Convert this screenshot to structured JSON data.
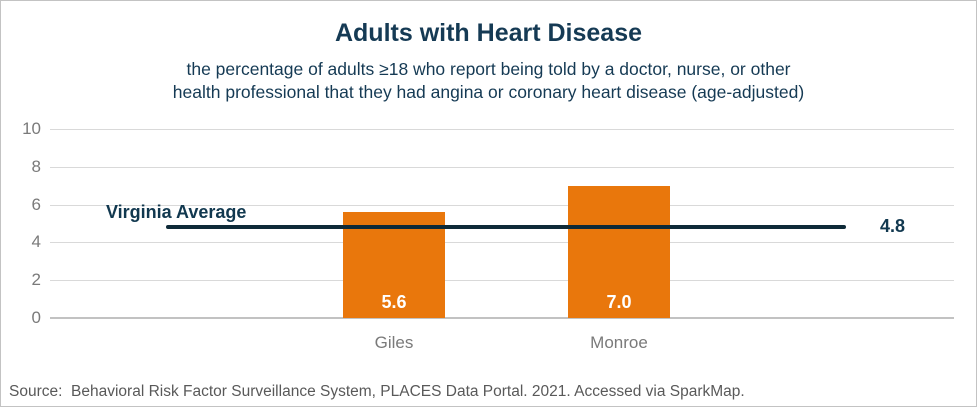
{
  "header": {
    "title": "Adults with Heart Disease",
    "subtitle_line1": "the percentage of adults ≥18 who report being told by a doctor, nurse, or other",
    "subtitle_line2": "health professional that they had angina or coronary heart disease (age-adjusted)"
  },
  "chart_data": {
    "type": "bar",
    "title": "Adults with Heart Disease",
    "subtitle": "the percentage of adults ≥18 who report being told by a doctor, nurse, or other health professional that they had angina or coronary heart disease (age-adjusted)",
    "categories": [
      "Giles",
      "Monroe"
    ],
    "values": [
      5.6,
      7.0
    ],
    "value_labels": [
      "5.6",
      "7.0"
    ],
    "reference_line": {
      "label": "Virginia Average",
      "value": 4.8,
      "value_label": "4.8"
    },
    "ylim": [
      0,
      10
    ],
    "yticks": [
      0,
      2,
      4,
      6,
      8,
      10
    ],
    "grid": true,
    "legend": "none",
    "bar_color": "#e9770c",
    "reference_line_color": "#0e2a38",
    "value_label_color": "#ffffff"
  },
  "footer": {
    "source": "Source:  Behavioral Risk Factor Surveillance System, PLACES Data Portal. 2021. Accessed via SparkMap."
  }
}
